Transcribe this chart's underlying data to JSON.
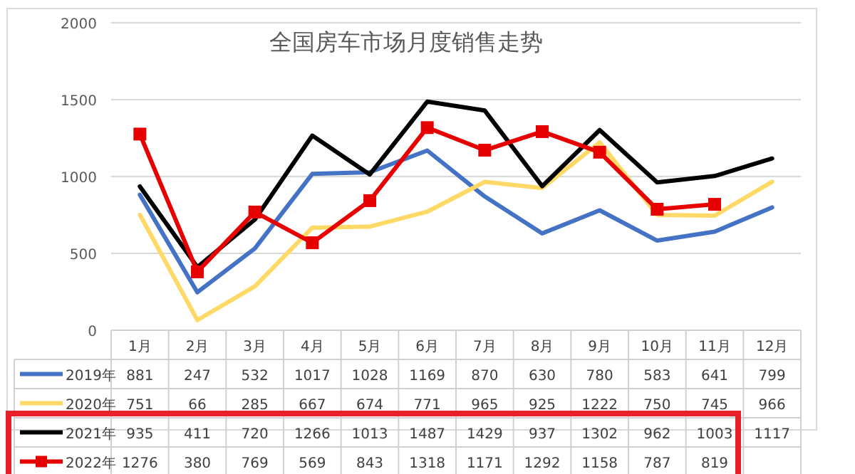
{
  "chart_data": {
    "type": "line",
    "title": "全国房车市场月度销售走势",
    "categories": [
      "1月",
      "2月",
      "3月",
      "4月",
      "5月",
      "6月",
      "7月",
      "8月",
      "9月",
      "10月",
      "11月",
      "12月"
    ],
    "series": [
      {
        "name": "2019年",
        "color": "#4472c4",
        "values": [
          881,
          247,
          532,
          1017,
          1028,
          1169,
          870,
          630,
          780,
          583,
          641,
          799
        ]
      },
      {
        "name": "2020年",
        "color": "#ffd966",
        "values": [
          751,
          66,
          285,
          667,
          674,
          771,
          965,
          925,
          1222,
          750,
          745,
          966
        ]
      },
      {
        "name": "2021年",
        "color": "#000000",
        "values": [
          935,
          411,
          720,
          1266,
          1013,
          1487,
          1429,
          937,
          1302,
          962,
          1003,
          1117
        ]
      },
      {
        "name": "2022年",
        "color": "#e60000",
        "marker": "square",
        "values": [
          1276,
          380,
          769,
          569,
          843,
          1318,
          1171,
          1292,
          1158,
          787,
          819,
          null
        ]
      }
    ],
    "ylim": [
      0,
      2000
    ],
    "yticks": [
      0,
      500,
      1000,
      1500,
      2000
    ],
    "grid": "y",
    "data_labels": true,
    "legend": "bottom"
  }
}
